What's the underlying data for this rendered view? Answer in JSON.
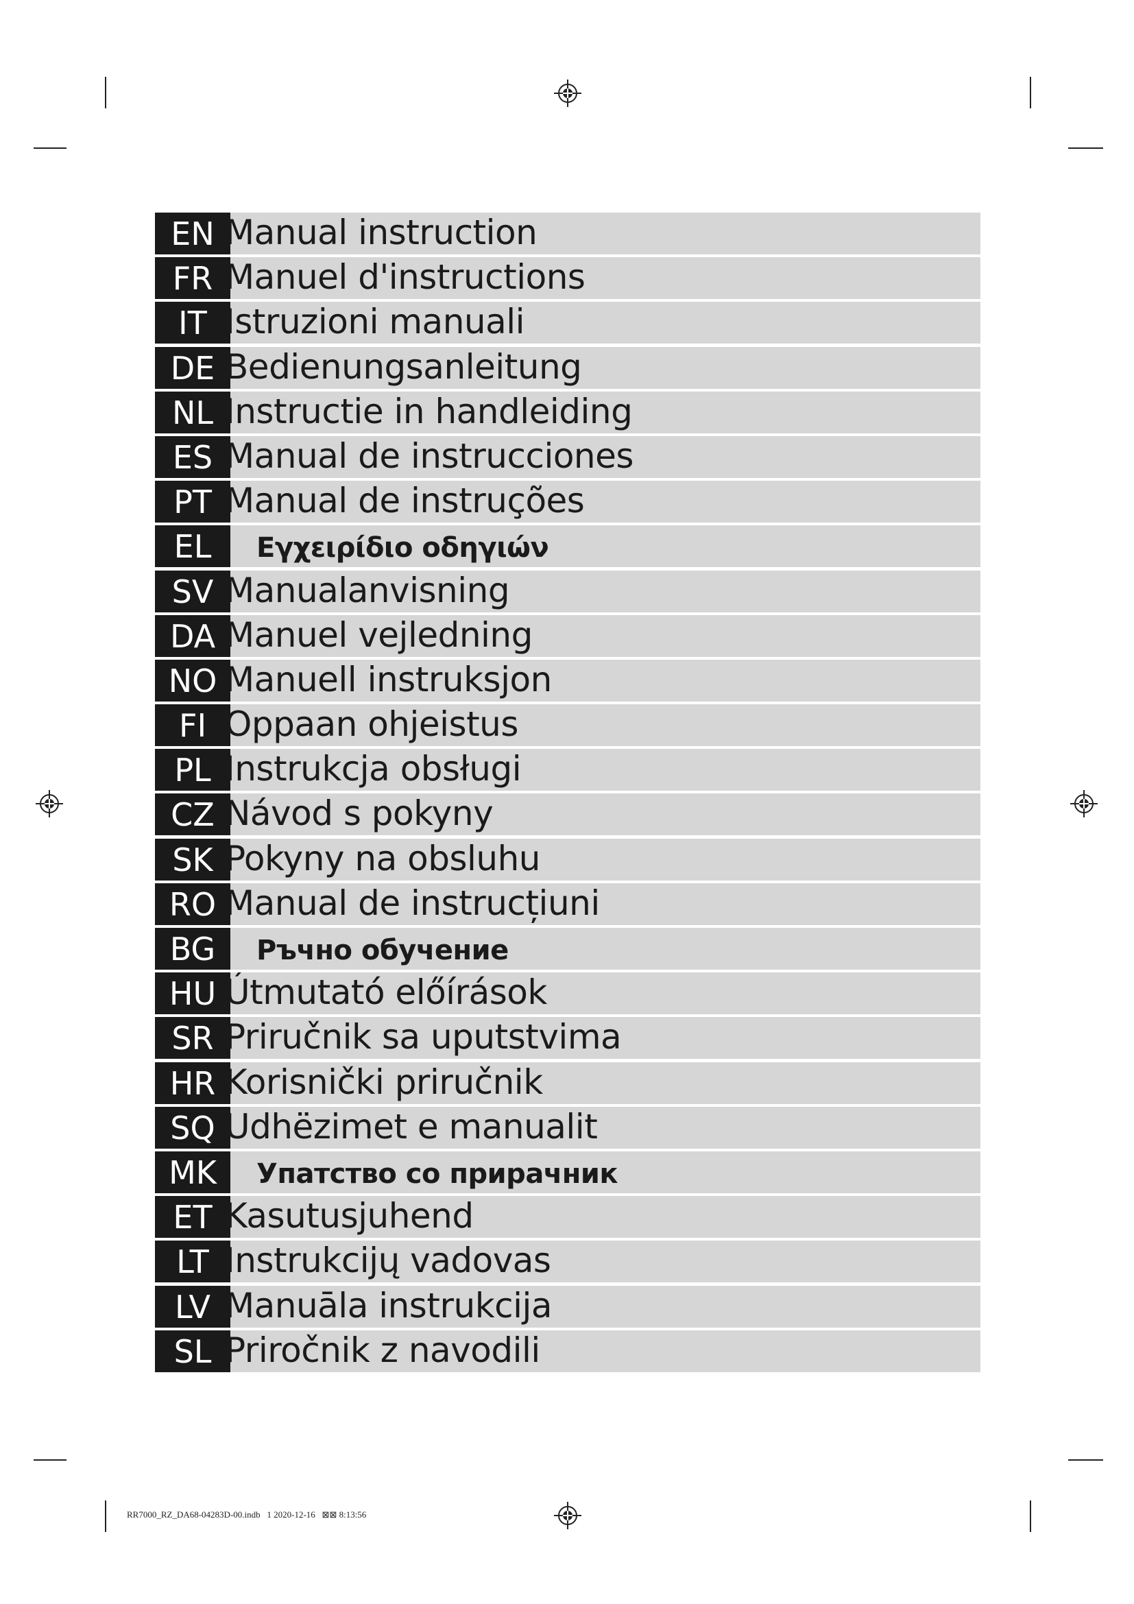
{
  "languages": [
    {
      "code": "EN",
      "title": "Manual instruction"
    },
    {
      "code": "FR",
      "title": "Manuel d'instructions"
    },
    {
      "code": "IT",
      "title": "Istruzioni manuali"
    },
    {
      "code": "DE",
      "title": "Bedienungsanleitung"
    },
    {
      "code": "NL",
      "title": "Instructie in handleiding"
    },
    {
      "code": "ES",
      "title": "Manual de instrucciones"
    },
    {
      "code": "PT",
      "title": "Manual de instruções"
    },
    {
      "code": "EL",
      "title": "Εγχειρίδιο οδηγιών",
      "alt": true
    },
    {
      "code": "SV",
      "title": "Manualanvisning"
    },
    {
      "code": "DA",
      "title": "Manuel vejledning"
    },
    {
      "code": "NO",
      "title": "Manuell instruksjon"
    },
    {
      "code": "FI",
      "title": "Oppaan ohjeistus"
    },
    {
      "code": "PL",
      "title": "Instrukcja obsługi"
    },
    {
      "code": "CZ",
      "title": "Návod s pokyny"
    },
    {
      "code": "SK",
      "title": "Pokyny na obsluhu"
    },
    {
      "code": "RO",
      "title": "Manual de instrucțiuni"
    },
    {
      "code": "BG",
      "title": "Ръчно обучение",
      "alt": true
    },
    {
      "code": "HU",
      "title": "Útmutató előírások"
    },
    {
      "code": "SR",
      "title": "Priručnik sa uputstvima"
    },
    {
      "code": "HR",
      "title": "Korisnički priručnik"
    },
    {
      "code": "SQ",
      "title": "Udhëzimet e manualit"
    },
    {
      "code": "MK",
      "title": "Упатство со прирачник",
      "alt": true
    },
    {
      "code": "ET",
      "title": "Kasutusjuhend"
    },
    {
      "code": "LT",
      "title": "Instrukcijų vadovas"
    },
    {
      "code": "LV",
      "title": "Manuāla instrukcija"
    },
    {
      "code": "SL",
      "title": "Priročnik z navodili"
    }
  ],
  "footer": {
    "text": "RR7000_RZ_DA68-04283D-00.indb   1 2020-12-16   ⊠⊠ 8:13:56"
  },
  "colors": {
    "code_bg": "#1a1a1a",
    "row_bg": "#d6d6d6"
  }
}
